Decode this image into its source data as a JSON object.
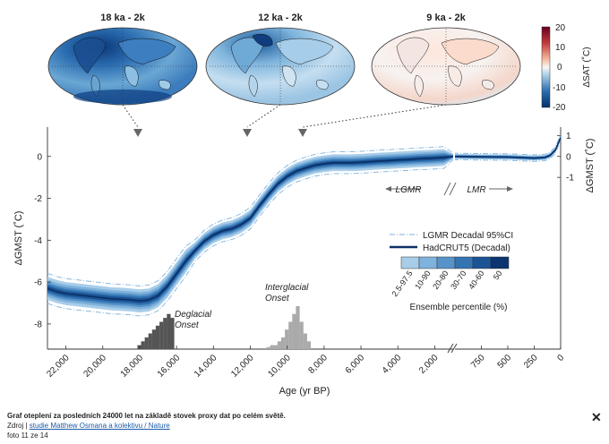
{
  "maps": [
    {
      "title": "18 ka - 2k",
      "anomaly": "cold"
    },
    {
      "title": "12 ka - 2k",
      "anomaly": "mild-cold"
    },
    {
      "title": "9 ka - 2k",
      "anomaly": "near-zero"
    }
  ],
  "colorbar": {
    "label": "ΔSAT (˚C)",
    "ticks": [
      "20",
      "10",
      "0",
      "-10",
      "-20"
    ],
    "colors": [
      "#6b0016",
      "#c0392b",
      "#f4a582",
      "#f7f7f7",
      "#92c5de",
      "#2166ac",
      "#05306b"
    ]
  },
  "legend": {
    "ci_label": "LGMR Decadal 95%CI",
    "hadcrut_label": "HadCRUT5 (Decadal)",
    "percentile_ticks": [
      "2.5-97.5",
      "10-90",
      "20-80",
      "30-70",
      "40-60",
      "50"
    ],
    "percentile_colors": [
      "#a8cde9",
      "#7fb2dc",
      "#5793c9",
      "#3474b3",
      "#1b5494",
      "#0b3470"
    ],
    "percentile_title": "Ensemble percentile (%)"
  },
  "annotations": {
    "deglacial": "Deglacial\nOnset",
    "interglacial": "Interglacial\nOnset",
    "lgmr": "LGMR",
    "lmr": "LMR"
  },
  "caption": {
    "title": "Graf oteplení za posledních 24000 let na základě stovek proxy dat po celém světě.",
    "source_prefix": "Zdroj |",
    "source_link": "studie Matthew Osmana a kolektivu / Nature",
    "counter": "foto 11 ze 14"
  },
  "chart_data": {
    "type": "line",
    "xlabel": "Age (yr BP)",
    "ylabel": "ΔGMST (˚C)",
    "ylabel_right": "ΔGMST (˚C)",
    "x_ticks_left": [
      "22,000",
      "20,000",
      "18,000",
      "16,000",
      "14,000",
      "12,000",
      "10,000",
      "8,000",
      "6,000",
      "4,000",
      "2,000"
    ],
    "x_ticks_right": [
      "750",
      "500",
      "250",
      "0"
    ],
    "y_ticks_left": [
      "0",
      "-2",
      "-4",
      "-6",
      "-8"
    ],
    "y_ticks_right": [
      "1",
      "0",
      "-1"
    ],
    "xlim_left": [
      23000,
      1000
    ],
    "xlim_right": [
      1000,
      0
    ],
    "ylim": [
      -9.2,
      1.4
    ],
    "series": [
      {
        "name": "HadCRUT5 (Decadal)",
        "x": [
          23000,
          22500,
          22000,
          21500,
          21000,
          20500,
          20000,
          19500,
          19000,
          18500,
          18000,
          17500,
          17000,
          16500,
          16000,
          15500,
          15000,
          14500,
          14000,
          13500,
          13000,
          12500,
          12000,
          11500,
          11000,
          10500,
          10000,
          9500,
          9000,
          8500,
          8000,
          7500,
          7000,
          6500,
          6000,
          5500,
          5000,
          4500,
          4000,
          3500,
          3000,
          2500,
          2000,
          1500,
          1000,
          750,
          500,
          250,
          150,
          100,
          50,
          0
        ],
        "y": [
          -6.3,
          -6.45,
          -6.55,
          -6.6,
          -6.65,
          -6.7,
          -6.75,
          -6.8,
          -6.82,
          -6.85,
          -6.9,
          -6.85,
          -6.65,
          -6.2,
          -5.6,
          -5.0,
          -4.5,
          -4.05,
          -3.75,
          -3.55,
          -3.45,
          -3.25,
          -2.95,
          -2.35,
          -1.8,
          -1.3,
          -0.95,
          -0.7,
          -0.55,
          -0.42,
          -0.35,
          -0.3,
          -0.3,
          -0.3,
          -0.28,
          -0.25,
          -0.22,
          -0.2,
          -0.17,
          -0.15,
          -0.12,
          -0.1,
          -0.08,
          -0.05,
          0.0,
          -0.02,
          -0.03,
          -0.08,
          -0.05,
          0.05,
          0.3,
          0.9
        ]
      }
    ],
    "histograms": [
      {
        "name": "Deglacial Onset",
        "x": [
          18000,
          17800,
          17600,
          17400,
          17200,
          17000,
          16800,
          16600,
          16400,
          16200
        ],
        "values": [
          1,
          2,
          3,
          4,
          5,
          6,
          7,
          8,
          9,
          8
        ]
      },
      {
        "name": "Interglacial Onset",
        "x": [
          11000,
          10800,
          10600,
          10400,
          10200,
          10000,
          9800,
          9600,
          9400,
          9200,
          9000,
          8800
        ],
        "values": [
          0.5,
          1,
          1,
          2,
          3,
          5,
          7,
          9,
          11,
          7,
          4,
          2
        ]
      }
    ],
    "grid": false,
    "legend_position": "center-right"
  }
}
